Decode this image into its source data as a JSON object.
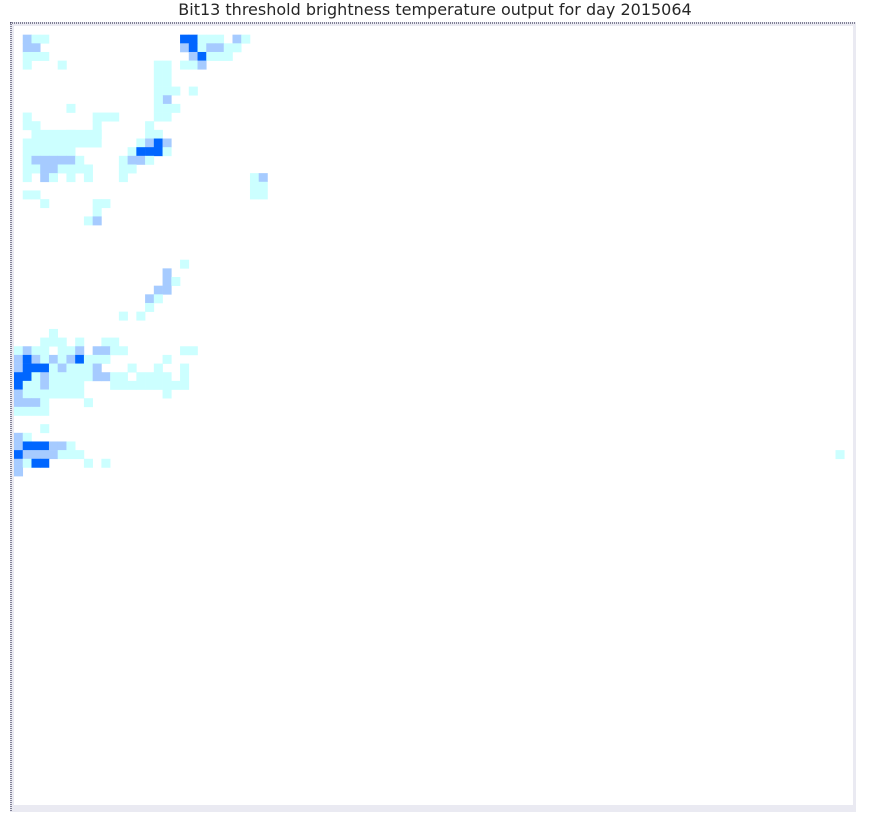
{
  "chart_data": {
    "type": "heatmap",
    "title": "Bit13 threshold brightness temperature  output for day 2015064",
    "xlabel": "",
    "ylabel": "",
    "grid_cols": 96,
    "grid_rows": 90,
    "axis_ticks": false,
    "colors": {
      "background": "#ffffff",
      "frame": "#eaeaf2",
      "edge": "#1a1a3a",
      "levels": [
        "#ffffff",
        "#ccffff",
        "#a6cbff",
        "#0066ff"
      ]
    },
    "cells": [
      [
        1,
        1,
        2
      ],
      [
        2,
        1,
        1
      ],
      [
        3,
        1,
        1
      ],
      [
        1,
        2,
        2
      ],
      [
        2,
        2,
        2
      ],
      [
        1,
        3,
        1
      ],
      [
        2,
        3,
        1
      ],
      [
        3,
        3,
        1
      ],
      [
        1,
        4,
        1
      ],
      [
        5,
        4,
        1
      ],
      [
        1,
        10,
        1
      ],
      [
        1,
        11,
        1
      ],
      [
        2,
        11,
        1
      ],
      [
        19,
        1,
        3
      ],
      [
        20,
        1,
        3
      ],
      [
        21,
        1,
        1
      ],
      [
        22,
        1,
        1
      ],
      [
        23,
        1,
        1
      ],
      [
        25,
        1,
        2
      ],
      [
        26,
        1,
        1
      ],
      [
        19,
        2,
        2
      ],
      [
        20,
        2,
        3
      ],
      [
        21,
        2,
        1
      ],
      [
        22,
        2,
        2
      ],
      [
        23,
        2,
        2
      ],
      [
        24,
        2,
        1
      ],
      [
        25,
        2,
        1
      ],
      [
        20,
        3,
        2
      ],
      [
        21,
        3,
        3
      ],
      [
        22,
        3,
        1
      ],
      [
        23,
        3,
        1
      ],
      [
        24,
        3,
        1
      ],
      [
        19,
        4,
        1
      ],
      [
        20,
        4,
        1
      ],
      [
        21,
        4,
        2
      ],
      [
        16,
        4,
        1
      ],
      [
        17,
        4,
        1
      ],
      [
        16,
        5,
        1
      ],
      [
        17,
        5,
        1
      ],
      [
        16,
        6,
        1
      ],
      [
        17,
        6,
        1
      ],
      [
        16,
        7,
        1
      ],
      [
        17,
        7,
        1
      ],
      [
        18,
        7,
        1
      ],
      [
        20,
        7,
        1
      ],
      [
        17,
        8,
        2
      ],
      [
        16,
        8,
        1
      ],
      [
        16,
        9,
        1
      ],
      [
        17,
        9,
        1
      ],
      [
        18,
        9,
        1
      ],
      [
        16,
        10,
        1
      ],
      [
        17,
        10,
        1
      ],
      [
        6,
        9,
        1
      ],
      [
        9,
        10,
        1
      ],
      [
        10,
        10,
        1
      ],
      [
        11,
        10,
        1
      ],
      [
        9,
        11,
        1
      ],
      [
        6,
        12,
        1
      ],
      [
        9,
        12,
        1
      ],
      [
        15,
        11,
        1
      ],
      [
        2,
        12,
        1
      ],
      [
        3,
        12,
        1
      ],
      [
        4,
        12,
        1
      ],
      [
        5,
        12,
        1
      ],
      [
        6,
        12,
        1
      ],
      [
        7,
        12,
        1
      ],
      [
        8,
        12,
        1
      ],
      [
        9,
        12,
        1
      ],
      [
        1,
        13,
        1
      ],
      [
        2,
        13,
        1
      ],
      [
        3,
        13,
        1
      ],
      [
        4,
        13,
        1
      ],
      [
        5,
        13,
        1
      ],
      [
        6,
        13,
        1
      ],
      [
        7,
        13,
        1
      ],
      [
        8,
        13,
        1
      ],
      [
        9,
        13,
        1
      ],
      [
        1,
        14,
        1
      ],
      [
        2,
        14,
        1
      ],
      [
        3,
        14,
        1
      ],
      [
        4,
        14,
        1
      ],
      [
        5,
        14,
        1
      ],
      [
        6,
        14,
        1
      ],
      [
        1,
        15,
        1
      ],
      [
        2,
        15,
        2
      ],
      [
        3,
        15,
        2
      ],
      [
        4,
        15,
        2
      ],
      [
        5,
        15,
        2
      ],
      [
        6,
        15,
        2
      ],
      [
        7,
        15,
        1
      ],
      [
        1,
        16,
        1
      ],
      [
        2,
        16,
        1
      ],
      [
        3,
        16,
        2
      ],
      [
        4,
        16,
        2
      ],
      [
        5,
        16,
        1
      ],
      [
        6,
        16,
        1
      ],
      [
        7,
        16,
        1
      ],
      [
        8,
        16,
        1
      ],
      [
        1,
        17,
        1
      ],
      [
        3,
        17,
        2
      ],
      [
        4,
        17,
        1
      ],
      [
        6,
        17,
        1
      ],
      [
        8,
        17,
        1
      ],
      [
        15,
        12,
        1
      ],
      [
        16,
        12,
        1
      ],
      [
        14,
        13,
        1
      ],
      [
        15,
        13,
        2
      ],
      [
        16,
        13,
        3
      ],
      [
        17,
        13,
        2
      ],
      [
        13,
        14,
        1
      ],
      [
        14,
        14,
        3
      ],
      [
        15,
        14,
        3
      ],
      [
        16,
        14,
        3
      ],
      [
        17,
        14,
        1
      ],
      [
        12,
        15,
        1
      ],
      [
        13,
        15,
        2
      ],
      [
        14,
        15,
        2
      ],
      [
        15,
        15,
        1
      ],
      [
        12,
        16,
        1
      ],
      [
        13,
        16,
        1
      ],
      [
        12,
        17,
        1
      ],
      [
        27,
        17,
        1
      ],
      [
        28,
        17,
        2
      ],
      [
        27,
        18,
        1
      ],
      [
        28,
        18,
        1
      ],
      [
        27,
        19,
        1
      ],
      [
        28,
        19,
        1
      ],
      [
        1,
        19,
        1
      ],
      [
        2,
        19,
        1
      ],
      [
        3,
        20,
        1
      ],
      [
        9,
        20,
        1
      ],
      [
        10,
        20,
        1
      ],
      [
        9,
        21,
        1
      ],
      [
        8,
        22,
        1
      ],
      [
        9,
        22,
        2
      ],
      [
        19,
        27,
        1
      ],
      [
        17,
        28,
        2
      ],
      [
        17,
        29,
        2
      ],
      [
        18,
        29,
        1
      ],
      [
        16,
        30,
        2
      ],
      [
        17,
        30,
        2
      ],
      [
        15,
        31,
        2
      ],
      [
        16,
        31,
        1
      ],
      [
        15,
        32,
        1
      ],
      [
        12,
        33,
        1
      ],
      [
        14,
        33,
        1
      ],
      [
        4,
        35,
        1
      ],
      [
        3,
        36,
        1
      ],
      [
        4,
        36,
        1
      ],
      [
        5,
        36,
        1
      ],
      [
        7,
        36,
        1
      ],
      [
        10,
        36,
        1
      ],
      [
        11,
        36,
        1
      ],
      [
        0,
        37,
        1
      ],
      [
        1,
        37,
        2
      ],
      [
        2,
        37,
        1
      ],
      [
        3,
        37,
        1
      ],
      [
        5,
        37,
        1
      ],
      [
        6,
        37,
        1
      ],
      [
        7,
        37,
        2
      ],
      [
        9,
        37,
        2
      ],
      [
        10,
        37,
        2
      ],
      [
        11,
        37,
        1
      ],
      [
        12,
        37,
        1
      ],
      [
        19,
        37,
        1
      ],
      [
        20,
        37,
        1
      ],
      [
        0,
        38,
        2
      ],
      [
        1,
        38,
        3
      ],
      [
        2,
        38,
        2
      ],
      [
        3,
        38,
        1
      ],
      [
        4,
        38,
        2
      ],
      [
        5,
        38,
        1
      ],
      [
        6,
        38,
        2
      ],
      [
        7,
        38,
        3
      ],
      [
        8,
        38,
        1
      ],
      [
        9,
        38,
        1
      ],
      [
        10,
        38,
        1
      ],
      [
        17,
        38,
        1
      ],
      [
        0,
        39,
        2
      ],
      [
        1,
        39,
        3
      ],
      [
        2,
        39,
        3
      ],
      [
        3,
        39,
        3
      ],
      [
        4,
        39,
        1
      ],
      [
        5,
        39,
        2
      ],
      [
        6,
        39,
        1
      ],
      [
        7,
        39,
        1
      ],
      [
        8,
        39,
        1
      ],
      [
        9,
        39,
        2
      ],
      [
        13,
        39,
        1
      ],
      [
        16,
        39,
        1
      ],
      [
        19,
        39,
        1
      ],
      [
        0,
        40,
        3
      ],
      [
        1,
        40,
        3
      ],
      [
        2,
        40,
        1
      ],
      [
        3,
        40,
        2
      ],
      [
        4,
        40,
        1
      ],
      [
        5,
        40,
        1
      ],
      [
        6,
        40,
        1
      ],
      [
        7,
        40,
        1
      ],
      [
        8,
        40,
        1
      ],
      [
        9,
        40,
        2
      ],
      [
        10,
        40,
        2
      ],
      [
        11,
        40,
        1
      ],
      [
        12,
        40,
        1
      ],
      [
        14,
        40,
        1
      ],
      [
        15,
        40,
        1
      ],
      [
        16,
        40,
        1
      ],
      [
        17,
        40,
        1
      ],
      [
        19,
        40,
        1
      ],
      [
        0,
        41,
        3
      ],
      [
        1,
        41,
        1
      ],
      [
        2,
        41,
        1
      ],
      [
        3,
        41,
        2
      ],
      [
        4,
        41,
        1
      ],
      [
        5,
        41,
        1
      ],
      [
        6,
        41,
        1
      ],
      [
        7,
        41,
        1
      ],
      [
        11,
        41,
        1
      ],
      [
        12,
        41,
        1
      ],
      [
        13,
        41,
        1
      ],
      [
        14,
        41,
        1
      ],
      [
        15,
        41,
        1
      ],
      [
        16,
        41,
        1
      ],
      [
        17,
        41,
        1
      ],
      [
        18,
        41,
        1
      ],
      [
        19,
        41,
        1
      ],
      [
        0,
        42,
        2
      ],
      [
        1,
        42,
        1
      ],
      [
        2,
        42,
        1
      ],
      [
        3,
        42,
        1
      ],
      [
        4,
        42,
        1
      ],
      [
        5,
        42,
        1
      ],
      [
        6,
        42,
        1
      ],
      [
        7,
        42,
        1
      ],
      [
        17,
        42,
        1
      ],
      [
        0,
        43,
        2
      ],
      [
        1,
        43,
        2
      ],
      [
        2,
        43,
        2
      ],
      [
        3,
        43,
        1
      ],
      [
        8,
        43,
        1
      ],
      [
        0,
        44,
        1
      ],
      [
        1,
        44,
        1
      ],
      [
        2,
        44,
        1
      ],
      [
        3,
        44,
        1
      ],
      [
        3,
        46,
        1
      ],
      [
        0,
        47,
        2
      ],
      [
        1,
        47,
        1
      ],
      [
        0,
        48,
        2
      ],
      [
        1,
        48,
        3
      ],
      [
        2,
        48,
        3
      ],
      [
        3,
        48,
        3
      ],
      [
        4,
        48,
        2
      ],
      [
        5,
        48,
        2
      ],
      [
        6,
        48,
        1
      ],
      [
        0,
        49,
        3
      ],
      [
        1,
        49,
        2
      ],
      [
        2,
        49,
        2
      ],
      [
        3,
        49,
        2
      ],
      [
        4,
        49,
        2
      ],
      [
        5,
        49,
        1
      ],
      [
        6,
        49,
        1
      ],
      [
        7,
        49,
        1
      ],
      [
        0,
        50,
        2
      ],
      [
        1,
        50,
        1
      ],
      [
        2,
        50,
        3
      ],
      [
        3,
        50,
        3
      ],
      [
        10,
        50,
        1
      ],
      [
        8,
        50,
        1
      ],
      [
        0,
        51,
        2
      ],
      [
        94,
        49,
        1
      ]
    ]
  }
}
